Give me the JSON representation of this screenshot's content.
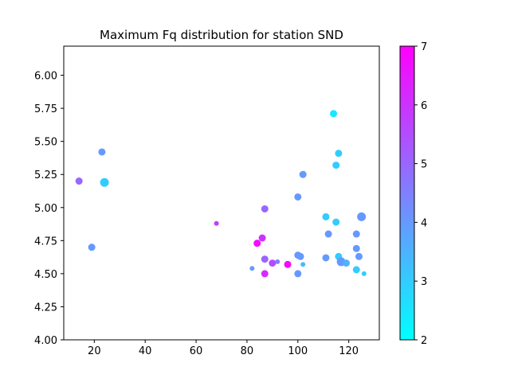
{
  "chart_data": {
    "type": "scatter",
    "title": "Maximum Fq distribution for station SND",
    "xlabel": "",
    "ylabel": "",
    "xlim": [
      8,
      132
    ],
    "ylim": [
      4.0,
      6.22
    ],
    "x_ticks": [
      20,
      40,
      60,
      80,
      100,
      120
    ],
    "x_tick_labels": [
      "20",
      "40",
      "60",
      "80",
      "100",
      "120"
    ],
    "y_ticks": [
      4.0,
      4.25,
      4.5,
      4.75,
      5.0,
      5.25,
      5.5,
      5.75,
      6.0
    ],
    "y_tick_labels": [
      "4.00",
      "4.25",
      "4.50",
      "4.75",
      "5.00",
      "5.25",
      "5.50",
      "5.75",
      "6.00"
    ],
    "grid": false,
    "colormap": "cool",
    "colorbar": {
      "min": 2,
      "max": 7,
      "ticks": [
        2,
        3,
        4,
        5,
        6,
        7
      ],
      "tick_labels": [
        "2",
        "3",
        "4",
        "5",
        "6",
        "7"
      ]
    },
    "points": [
      {
        "x": 14,
        "y": 5.2,
        "c": 5.0,
        "s": 4.5
      },
      {
        "x": 19,
        "y": 4.7,
        "c": 4.0,
        "s": 4.5
      },
      {
        "x": 23,
        "y": 5.42,
        "c": 4.0,
        "s": 4.5
      },
      {
        "x": 24,
        "y": 5.19,
        "c": 3.0,
        "s": 5.5
      },
      {
        "x": 68,
        "y": 4.88,
        "c": 5.8,
        "s": 3.0
      },
      {
        "x": 82,
        "y": 4.54,
        "c": 4.0,
        "s": 3.0
      },
      {
        "x": 84,
        "y": 4.73,
        "c": 6.8,
        "s": 4.5
      },
      {
        "x": 86,
        "y": 4.77,
        "c": 6.0,
        "s": 4.5
      },
      {
        "x": 87,
        "y": 4.99,
        "c": 5.0,
        "s": 4.5
      },
      {
        "x": 87,
        "y": 4.61,
        "c": 5.0,
        "s": 4.5
      },
      {
        "x": 87,
        "y": 4.5,
        "c": 6.2,
        "s": 4.5
      },
      {
        "x": 90,
        "y": 4.58,
        "c": 5.5,
        "s": 4.5
      },
      {
        "x": 92,
        "y": 4.59,
        "c": 4.5,
        "s": 3.0
      },
      {
        "x": 96,
        "y": 4.57,
        "c": 6.8,
        "s": 4.5
      },
      {
        "x": 100,
        "y": 5.08,
        "c": 4.0,
        "s": 4.5
      },
      {
        "x": 100,
        "y": 4.64,
        "c": 4.0,
        "s": 4.5
      },
      {
        "x": 100,
        "y": 4.5,
        "c": 4.0,
        "s": 4.5
      },
      {
        "x": 101,
        "y": 4.63,
        "c": 4.0,
        "s": 4.5
      },
      {
        "x": 102,
        "y": 5.25,
        "c": 4.0,
        "s": 4.5
      },
      {
        "x": 102,
        "y": 4.57,
        "c": 3.3,
        "s": 3.0
      },
      {
        "x": 111,
        "y": 4.93,
        "c": 3.0,
        "s": 4.5
      },
      {
        "x": 111,
        "y": 4.62,
        "c": 4.0,
        "s": 4.5
      },
      {
        "x": 112,
        "y": 4.8,
        "c": 4.0,
        "s": 4.5
      },
      {
        "x": 114,
        "y": 5.71,
        "c": 2.5,
        "s": 4.5
      },
      {
        "x": 115,
        "y": 5.32,
        "c": 3.0,
        "s": 4.5
      },
      {
        "x": 115,
        "y": 4.89,
        "c": 3.0,
        "s": 4.5
      },
      {
        "x": 116,
        "y": 5.41,
        "c": 3.0,
        "s": 4.5
      },
      {
        "x": 116,
        "y": 4.63,
        "c": 3.0,
        "s": 4.5
      },
      {
        "x": 117,
        "y": 4.59,
        "c": 4.0,
        "s": 5.5
      },
      {
        "x": 119,
        "y": 4.58,
        "c": 3.5,
        "s": 4.5
      },
      {
        "x": 123,
        "y": 4.8,
        "c": 4.0,
        "s": 4.5
      },
      {
        "x": 123,
        "y": 4.69,
        "c": 4.0,
        "s": 4.5
      },
      {
        "x": 123,
        "y": 4.53,
        "c": 3.0,
        "s": 4.5
      },
      {
        "x": 124,
        "y": 4.63,
        "c": 4.0,
        "s": 4.5
      },
      {
        "x": 125,
        "y": 4.93,
        "c": 4.0,
        "s": 5.5
      },
      {
        "x": 126,
        "y": 4.5,
        "c": 3.0,
        "s": 3.0
      }
    ]
  }
}
